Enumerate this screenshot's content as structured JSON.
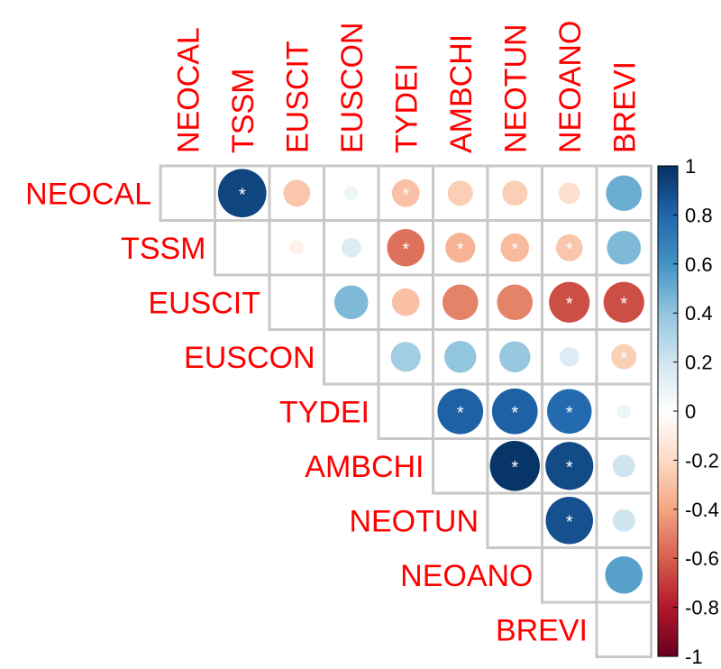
{
  "chart_data": {
    "type": "heatmap",
    "style": "upper-triangle correlation matrix, circles",
    "variables": [
      "NEOCAL",
      "TSSM",
      "EUSCIT",
      "EUSCON",
      "TYDEI",
      "AMBCHI",
      "NEOTUN",
      "NEOANO",
      "BREVI"
    ],
    "cells": [
      {
        "row": "NEOCAL",
        "col": "TSSM",
        "value": 0.92,
        "sig": true
      },
      {
        "row": "NEOCAL",
        "col": "EUSCIT",
        "value": -0.28,
        "sig": false
      },
      {
        "row": "NEOCAL",
        "col": "EUSCON",
        "value": 0.08,
        "sig": false
      },
      {
        "row": "NEOCAL",
        "col": "TYDEI",
        "value": -0.3,
        "sig": true
      },
      {
        "row": "NEOCAL",
        "col": "AMBCHI",
        "value": -0.25,
        "sig": false
      },
      {
        "row": "NEOCAL",
        "col": "NEOTUN",
        "value": -0.25,
        "sig": false
      },
      {
        "row": "NEOCAL",
        "col": "NEOANO",
        "value": -0.18,
        "sig": false
      },
      {
        "row": "NEOCAL",
        "col": "BREVI",
        "value": 0.5,
        "sig": false
      },
      {
        "row": "TSSM",
        "col": "EUSCIT",
        "value": -0.08,
        "sig": false
      },
      {
        "row": "TSSM",
        "col": "EUSCON",
        "value": 0.15,
        "sig": false
      },
      {
        "row": "TSSM",
        "col": "TYDEI",
        "value": -0.55,
        "sig": true
      },
      {
        "row": "TSSM",
        "col": "AMBCHI",
        "value": -0.35,
        "sig": true
      },
      {
        "row": "TSSM",
        "col": "NEOTUN",
        "value": -0.32,
        "sig": true
      },
      {
        "row": "TSSM",
        "col": "NEOANO",
        "value": -0.28,
        "sig": true
      },
      {
        "row": "TSSM",
        "col": "BREVI",
        "value": 0.45,
        "sig": false
      },
      {
        "row": "EUSCIT",
        "col": "EUSCON",
        "value": 0.45,
        "sig": false
      },
      {
        "row": "EUSCIT",
        "col": "TYDEI",
        "value": -0.3,
        "sig": false
      },
      {
        "row": "EUSCIT",
        "col": "AMBCHI",
        "value": -0.5,
        "sig": false
      },
      {
        "row": "EUSCIT",
        "col": "NEOTUN",
        "value": -0.5,
        "sig": false
      },
      {
        "row": "EUSCIT",
        "col": "NEOANO",
        "value": -0.65,
        "sig": true
      },
      {
        "row": "EUSCIT",
        "col": "BREVI",
        "value": -0.65,
        "sig": true
      },
      {
        "row": "EUSCON",
        "col": "TYDEI",
        "value": 0.35,
        "sig": false
      },
      {
        "row": "EUSCON",
        "col": "AMBCHI",
        "value": 0.4,
        "sig": false
      },
      {
        "row": "EUSCON",
        "col": "NEOTUN",
        "value": 0.38,
        "sig": false
      },
      {
        "row": "EUSCON",
        "col": "NEOANO",
        "value": 0.15,
        "sig": false
      },
      {
        "row": "EUSCON",
        "col": "BREVI",
        "value": -0.25,
        "sig": true
      },
      {
        "row": "TYDEI",
        "col": "AMBCHI",
        "value": 0.82,
        "sig": true
      },
      {
        "row": "TYDEI",
        "col": "NEOTUN",
        "value": 0.82,
        "sig": true
      },
      {
        "row": "TYDEI",
        "col": "NEOANO",
        "value": 0.78,
        "sig": true
      },
      {
        "row": "TYDEI",
        "col": "BREVI",
        "value": 0.08,
        "sig": false
      },
      {
        "row": "AMBCHI",
        "col": "NEOTUN",
        "value": 0.98,
        "sig": true
      },
      {
        "row": "AMBCHI",
        "col": "NEOANO",
        "value": 0.9,
        "sig": true
      },
      {
        "row": "AMBCHI",
        "col": "BREVI",
        "value": 0.2,
        "sig": false
      },
      {
        "row": "NEOTUN",
        "col": "NEOANO",
        "value": 0.88,
        "sig": true
      },
      {
        "row": "NEOTUN",
        "col": "BREVI",
        "value": 0.2,
        "sig": false
      },
      {
        "row": "NEOANO",
        "col": "BREVI",
        "value": 0.55,
        "sig": false
      }
    ],
    "colorbar": {
      "ticks": [
        "1",
        "0.8",
        "0.6",
        "0.4",
        "0.2",
        "0",
        "-0.2",
        "-0.4",
        "-0.6",
        "-0.8",
        "-1"
      ],
      "range": [
        -1,
        1
      ]
    },
    "significance_marker": "*",
    "colors": {
      "label": "#ff0000",
      "grid": "#c8c8c8",
      "scale": [
        "#67001f",
        "#b2182b",
        "#d6604d",
        "#f4a582",
        "#fddbc7",
        "#ffffff",
        "#d1e5f0",
        "#92c5de",
        "#4393c3",
        "#2166ac",
        "#053061"
      ]
    }
  }
}
